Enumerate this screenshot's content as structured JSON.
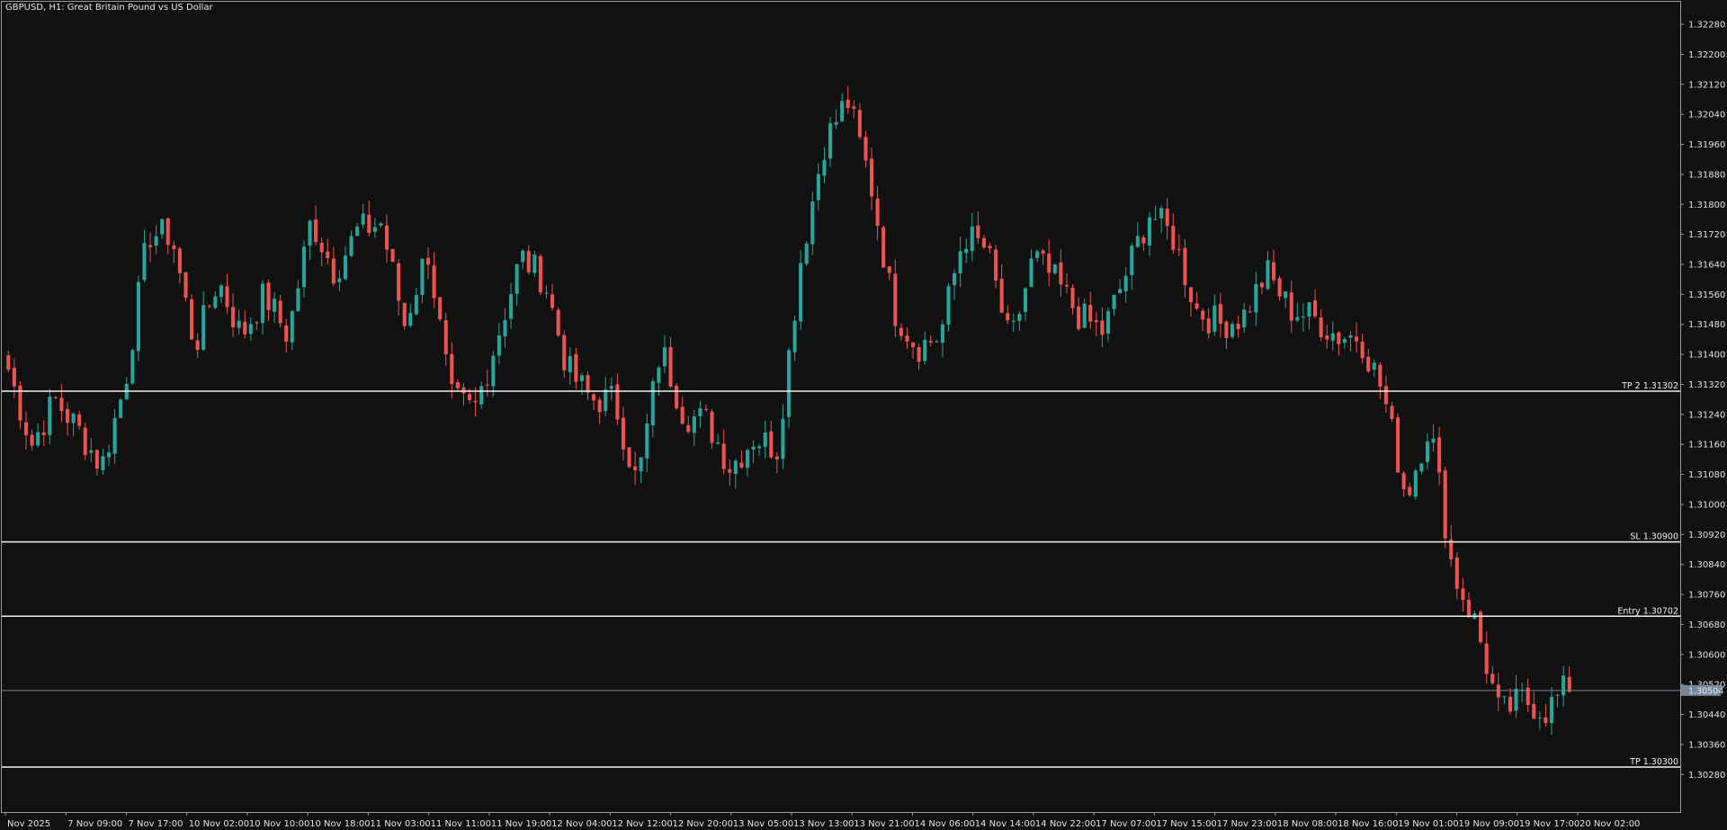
{
  "window": {
    "title": "GBPUSD, H1:  Great Britain Pound vs US Dollar"
  },
  "colors": {
    "background": "#111111",
    "bull": "#26a69a",
    "bear": "#ef5350",
    "line": "#f2f2f2",
    "bid_line": "#778899",
    "axis_text": "#e2e2e2"
  },
  "price_axis": {
    "min": 1.3018,
    "max": 1.3234,
    "ticks": [
      "1.32280",
      "1.32200",
      "1.32120",
      "1.32040",
      "1.31960",
      "1.31880",
      "1.31800",
      "1.31720",
      "1.31640",
      "1.31560",
      "1.31480",
      "1.31400",
      "1.31320",
      "1.31240",
      "1.31160",
      "1.31080",
      "1.31000",
      "1.30920",
      "1.30840",
      "1.30760",
      "1.30680",
      "1.30600",
      "1.30520",
      "1.30440",
      "1.30360",
      "1.30280"
    ]
  },
  "time_axis": {
    "labels": [
      "Nov 2025",
      "7 Nov 09:00",
      "7 Nov 17:00",
      "10 Nov 02:00",
      "10 Nov 10:00",
      "10 Nov 18:00",
      "11 Nov 03:00",
      "11 Nov 11:00",
      "11 Nov 19:00",
      "12 Nov 04:00",
      "12 Nov 12:00",
      "12 Nov 20:00",
      "13 Nov 05:00",
      "13 Nov 13:00",
      "13 Nov 21:00",
      "14 Nov 06:00",
      "14 Nov 14:00",
      "14 Nov 22:00",
      "17 Nov 07:00",
      "17 Nov 15:00",
      "17 Nov 23:00",
      "18 Nov 08:00",
      "18 Nov 16:00",
      "19 Nov 01:00",
      "19 Nov 09:00",
      "19 Nov 17:00",
      "20 Nov 02:00"
    ]
  },
  "levels": [
    {
      "label": "TP 2 1.31302",
      "price": 1.31302
    },
    {
      "label": "SL 1.30900",
      "price": 1.309
    },
    {
      "label": "Entry 1.30702",
      "price": 1.30702
    },
    {
      "label": "TP 1.30300",
      "price": 1.303
    }
  ],
  "current_price": {
    "label": "1.30504",
    "price": 1.30504
  },
  "chart_data": {
    "type": "candlestick",
    "symbol": "GBPUSD",
    "timeframe": "H1",
    "ylim": [
      1.3018,
      1.3234
    ],
    "anchors": [
      [
        1.3142,
        1.3136
      ],
      [
        1.3132,
        1.3116
      ],
      [
        1.311,
        1.3128
      ],
      [
        1.311,
        1.312
      ],
      [
        1.3098,
        1.311
      ],
      [
        1.3115,
        1.3132
      ],
      [
        1.3152,
        1.3172
      ],
      [
        1.3168,
        1.3172
      ],
      [
        1.3174,
        1.3142
      ],
      [
        1.3147,
        1.316
      ],
      [
        1.3165,
        1.3145
      ],
      [
        1.316,
        1.3156
      ],
      [
        1.3158,
        1.3145
      ],
      [
        1.318,
        1.3176
      ],
      [
        1.3172,
        1.3162
      ],
      [
        1.317,
        1.3173
      ],
      [
        1.3152,
        1.3175
      ],
      [
        1.316,
        1.3148
      ],
      [
        1.3162,
        1.3168
      ],
      [
        1.314,
        1.3128
      ],
      [
        1.312,
        1.3125
      ],
      [
        1.3132,
        1.3145
      ],
      [
        1.3172,
        1.3166
      ],
      [
        1.3164,
        1.316
      ],
      [
        1.3152,
        1.3136
      ],
      [
        1.3132,
        1.3128
      ],
      [
        1.3142,
        1.3128
      ],
      [
        1.3122,
        1.3105
      ],
      [
        1.3108,
        1.3142
      ],
      [
        1.3126,
        1.3124
      ],
      [
        1.3128,
        1.3122
      ],
      [
        1.3122,
        1.311
      ],
      [
        1.3108,
        1.3118
      ],
      [
        1.311,
        1.3115
      ],
      [
        1.3142,
        1.3165
      ],
      [
        1.3182,
        1.3196
      ],
      [
        1.3212,
        1.3208
      ],
      [
        1.319,
        1.3186
      ],
      [
        1.316,
        1.3152
      ],
      [
        1.3151,
        1.3142
      ],
      [
        1.315,
        1.3145
      ],
      [
        1.3148,
        1.3172
      ],
      [
        1.316,
        1.3168
      ],
      [
        1.3152,
        1.3142
      ],
      [
        1.3152,
        1.3166
      ],
      [
        1.3163,
        1.3159
      ],
      [
        1.316,
        1.315
      ],
      [
        1.3148,
        1.3146
      ],
      [
        1.3148,
        1.3162
      ],
      [
        1.3176,
        1.3178
      ],
      [
        1.3182,
        1.3171
      ],
      [
        1.3158,
        1.3152
      ],
      [
        1.3152,
        1.3148
      ],
      [
        1.3152,
        1.315
      ],
      [
        1.315,
        1.3162
      ],
      [
        1.3158,
        1.3152
      ],
      [
        1.315,
        1.315
      ],
      [
        1.3142,
        1.3145
      ],
      [
        1.313,
        1.3145
      ],
      [
        1.3151,
        1.313
      ],
      [
        1.3126,
        1.3102
      ],
      [
        1.3118,
        1.3122
      ],
      [
        1.311,
        1.3082
      ],
      [
        1.3075,
        1.3068
      ],
      [
        1.3062,
        1.3044
      ],
      [
        1.306,
        1.3048
      ],
      [
        1.3055,
        1.3045
      ],
      [
        1.305,
        1.3052
      ]
    ],
    "candle_count": 265
  }
}
